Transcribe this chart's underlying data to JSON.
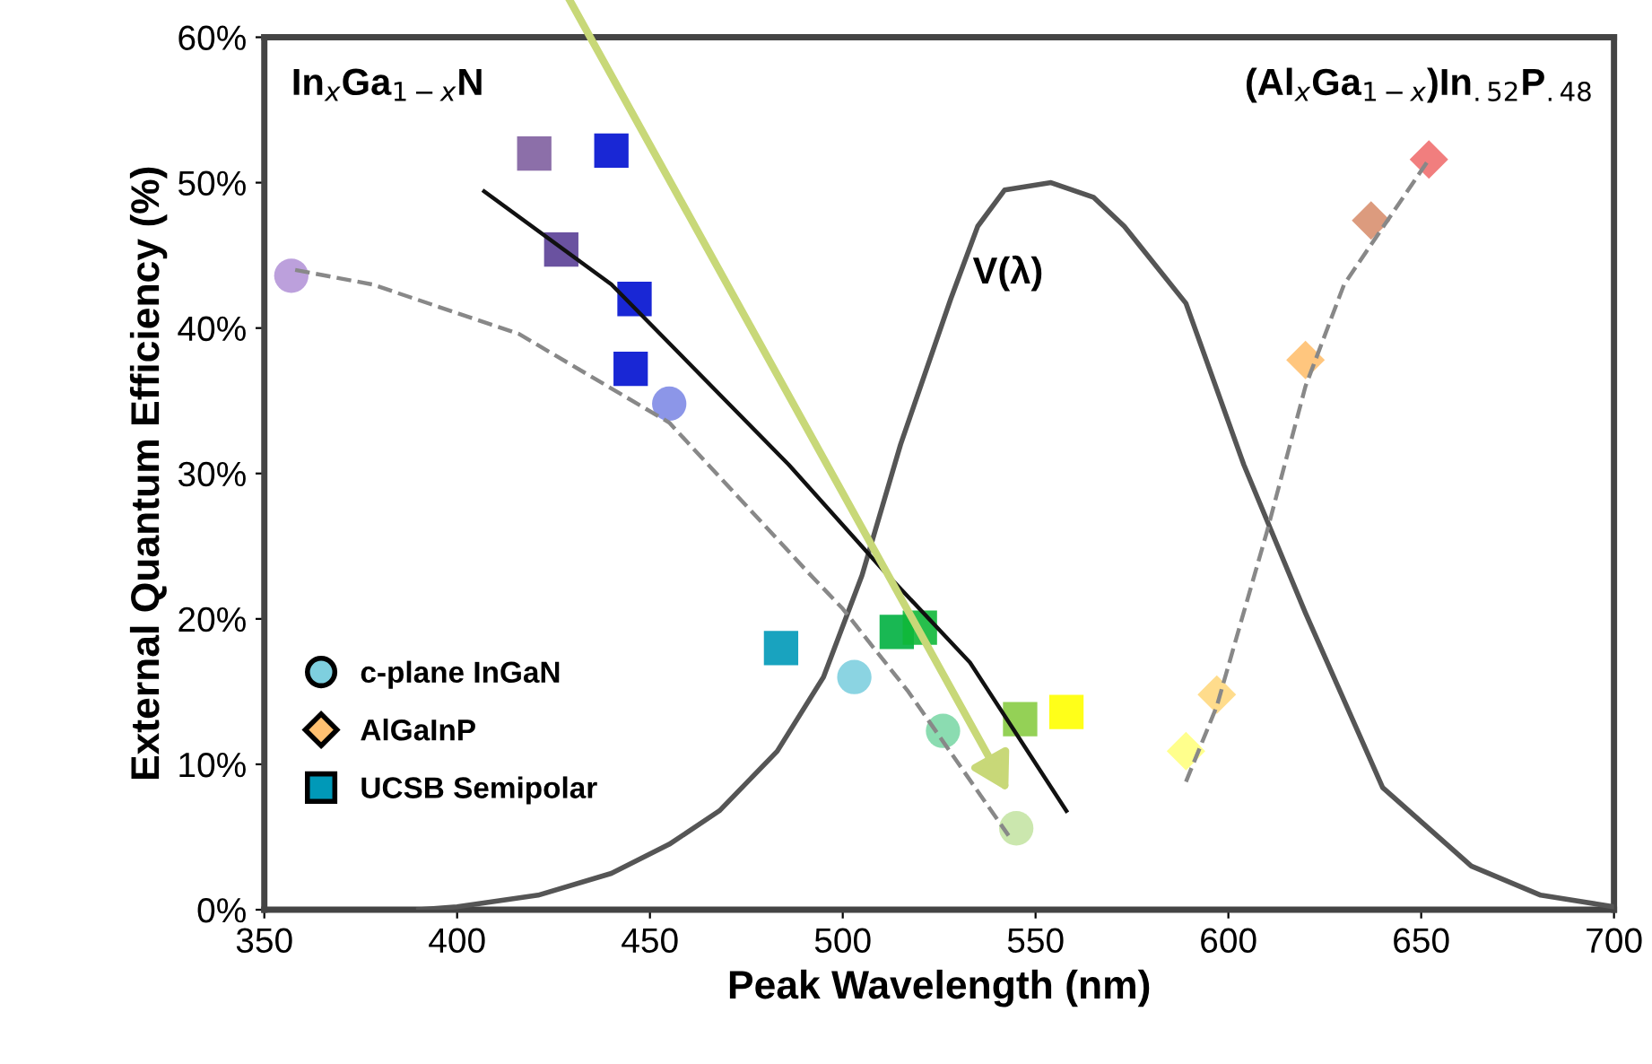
{
  "chart_data": {
    "type": "scatter",
    "xlabel": "Peak Wavelength (nm)",
    "ylabel": "External Quantum Efficiency (%)",
    "xlim": [
      350,
      700
    ],
    "xticks": [
      350,
      400,
      450,
      500,
      550,
      600,
      650,
      700
    ],
    "ylim": [
      0,
      60
    ],
    "yticks": [
      {
        "value": 0,
        "label": "0%"
      },
      {
        "value": 10,
        "label": "10%"
      },
      {
        "value": 20,
        "label": "20%"
      },
      {
        "value": 30,
        "label": "30%"
      },
      {
        "value": 40,
        "label": "40%"
      },
      {
        "value": 50,
        "label": "50%"
      },
      {
        "value": 60,
        "label": "60%"
      }
    ],
    "grid": false,
    "legend": "bottom left",
    "annotations": [
      {
        "text": "In$_{x}$Ga$_{1−x}$N"
      },
      {
        "text": "(Al$_{x}$Ga$_{1−x}$)In$_{.52}$P$_{.48}$"
      }
    ],
    "series": [
      {
        "name": "V(λ)",
        "type": "line",
        "color": "#555555",
        "line_style": "solid",
        "marker": "none",
        "x": [
          390,
          400,
          421,
          440,
          455,
          468,
          483,
          495,
          505,
          515,
          528,
          535,
          542,
          554,
          565,
          573,
          589,
          604,
          620,
          640,
          663,
          681,
          700
        ],
        "values": [
          0,
          0.2,
          1,
          2.5,
          4.5,
          6.8,
          10.9,
          16,
          23,
          32,
          42,
          47,
          49.5,
          50,
          49,
          47,
          41.7,
          30.6,
          20.4,
          8.4,
          3,
          1,
          0.2
        ]
      },
      {
        "type": "line",
        "color": "#888888",
        "line_style": "dashed",
        "marker": "none",
        "x": [
          358,
          378,
          416,
          455,
          491,
          500,
          517,
          543
        ],
        "values": [
          44,
          43,
          39.6,
          33.5,
          23.2,
          20.7,
          15,
          5.1
        ]
      },
      {
        "type": "line",
        "color": "#888888",
        "line_style": "dashed",
        "marker": "none",
        "x": [
          589,
          597,
          610,
          620,
          630,
          652
        ],
        "values": [
          8.8,
          14,
          26,
          36,
          43,
          51.6
        ]
      },
      {
        "type": "line",
        "color": "#111111",
        "line_style": "solid",
        "marker": "none",
        "x": [
          407,
          440,
          486,
          511,
          533,
          558
        ],
        "values": [
          49.4,
          43,
          30.6,
          23.2,
          17,
          6.8
        ]
      },
      {
        "name": "c-plane InGaN",
        "marker": "circle",
        "x": [
          357,
          455,
          503,
          526,
          545
        ],
        "values": [
          43.6,
          34.8,
          16.0,
          12.3,
          5.6
        ],
        "colors": [
          "#b596d8",
          "#7f8be6",
          "#7ecfdf",
          "#7ed8a8",
          "#c5e4a5"
        ]
      },
      {
        "name": "AlGaInP",
        "marker": "diamond",
        "x": [
          589,
          597,
          620,
          637,
          652
        ],
        "values": [
          10.9,
          14.8,
          37.8,
          47.4,
          51.6
        ],
        "colors": [
          "#ffff80",
          "#ffd880",
          "#ffc070",
          "#d89070",
          "#f07070"
        ]
      },
      {
        "name": "UCSB Semipolar",
        "marker": "square",
        "x": [
          420,
          440,
          427,
          446,
          445,
          484,
          514,
          520,
          546,
          558
        ],
        "values": [
          52.0,
          52.2,
          45.4,
          42.0,
          37.2,
          18.0,
          19.1,
          19.4,
          13.1,
          13.6
        ],
        "colors": [
          "#7f5fa0",
          "#0010d0",
          "#5a3f96",
          "#0010d0",
          "#0010d0",
          "#0099b8",
          "#00b040",
          "#10b838",
          "#88cc44",
          "#ffff00"
        ]
      }
    ]
  }
}
